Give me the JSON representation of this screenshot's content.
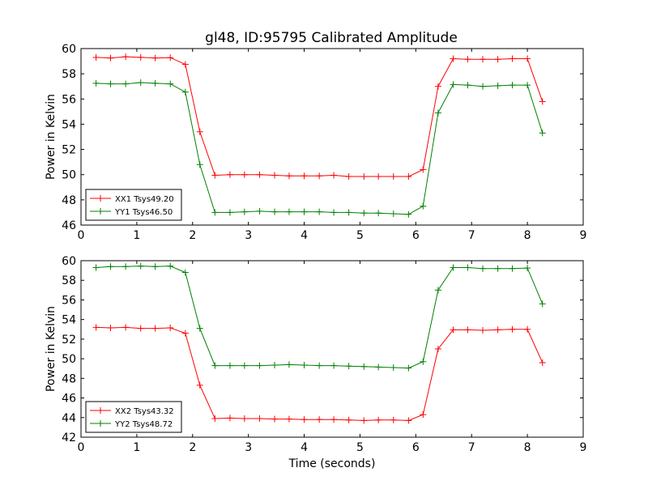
{
  "figure": {
    "title": "gl48, ID:95795 Calibrated Amplitude"
  },
  "chart_data": [
    {
      "type": "line",
      "title": "gl48, ID:95795 Calibrated Amplitude",
      "xlabel": "",
      "ylabel": "Power in Kelvin",
      "xlim": [
        0,
        9
      ],
      "ylim": [
        46,
        60
      ],
      "xticks": [
        "0",
        "1",
        "2",
        "3",
        "4",
        "5",
        "6",
        "7",
        "8",
        "9"
      ],
      "yticks": [
        "46",
        "48",
        "50",
        "52",
        "54",
        "56",
        "58",
        "60"
      ],
      "grid": false,
      "legend_position": "lower-left",
      "x": [
        0.27,
        0.53,
        0.8,
        1.07,
        1.33,
        1.6,
        1.87,
        2.13,
        2.4,
        2.67,
        2.93,
        3.2,
        3.47,
        3.73,
        4.0,
        4.27,
        4.53,
        4.8,
        5.07,
        5.33,
        5.6,
        5.87,
        6.13,
        6.4,
        6.67,
        6.93,
        7.2,
        7.47,
        7.73,
        8.0,
        8.27
      ],
      "series": [
        {
          "name": "XX1 Tsys49.20",
          "color": "#ff0000",
          "values": [
            59.3,
            59.25,
            59.35,
            59.3,
            59.25,
            59.28,
            58.75,
            53.4,
            49.95,
            50.0,
            50.0,
            50.0,
            49.95,
            49.9,
            49.9,
            49.9,
            49.95,
            49.85,
            49.85,
            49.85,
            49.85,
            49.85,
            50.4,
            57.0,
            59.2,
            59.15,
            59.15,
            59.15,
            59.2,
            59.2,
            55.8
          ]
        },
        {
          "name": "YY1 Tsys46.50",
          "color": "#008000",
          "values": [
            57.25,
            57.2,
            57.2,
            57.3,
            57.25,
            57.2,
            56.55,
            50.8,
            47.0,
            47.0,
            47.05,
            47.1,
            47.05,
            47.05,
            47.05,
            47.05,
            47.0,
            47.0,
            46.95,
            46.95,
            46.9,
            46.85,
            47.5,
            54.9,
            57.15,
            57.1,
            57.0,
            57.05,
            57.1,
            57.1,
            53.3
          ]
        }
      ]
    },
    {
      "type": "line",
      "title": "",
      "xlabel": "Time (seconds)",
      "ylabel": "Power in Kelvin",
      "xlim": [
        0,
        9
      ],
      "ylim": [
        42,
        60
      ],
      "xticks": [
        "0",
        "1",
        "2",
        "3",
        "4",
        "5",
        "6",
        "7",
        "8",
        "9"
      ],
      "yticks": [
        "42",
        "44",
        "46",
        "48",
        "50",
        "52",
        "54",
        "56",
        "58",
        "60"
      ],
      "grid": false,
      "legend_position": "lower-left",
      "x": [
        0.27,
        0.53,
        0.8,
        1.07,
        1.33,
        1.6,
        1.87,
        2.13,
        2.4,
        2.67,
        2.93,
        3.2,
        3.47,
        3.73,
        4.0,
        4.27,
        4.53,
        4.8,
        5.07,
        5.33,
        5.6,
        5.87,
        6.13,
        6.4,
        6.67,
        6.93,
        7.2,
        7.47,
        7.73,
        8.0,
        8.27
      ],
      "series": [
        {
          "name": "XX2 Tsys43.32",
          "color": "#ff0000",
          "values": [
            53.2,
            53.15,
            53.2,
            53.1,
            53.1,
            53.15,
            52.6,
            47.3,
            43.9,
            43.95,
            43.9,
            43.9,
            43.85,
            43.85,
            43.8,
            43.8,
            43.8,
            43.75,
            43.7,
            43.75,
            43.75,
            43.7,
            44.3,
            51.0,
            52.95,
            52.95,
            52.9,
            52.95,
            53.0,
            53.0,
            49.6
          ]
        },
        {
          "name": "YY2 Tsys48.72",
          "color": "#008000",
          "values": [
            59.3,
            59.4,
            59.4,
            59.45,
            59.4,
            59.45,
            58.8,
            53.1,
            49.3,
            49.3,
            49.3,
            49.3,
            49.35,
            49.4,
            49.35,
            49.3,
            49.3,
            49.25,
            49.2,
            49.15,
            49.1,
            49.05,
            49.7,
            57.0,
            59.3,
            59.3,
            59.2,
            59.2,
            59.2,
            59.25,
            55.6
          ]
        }
      ]
    }
  ]
}
